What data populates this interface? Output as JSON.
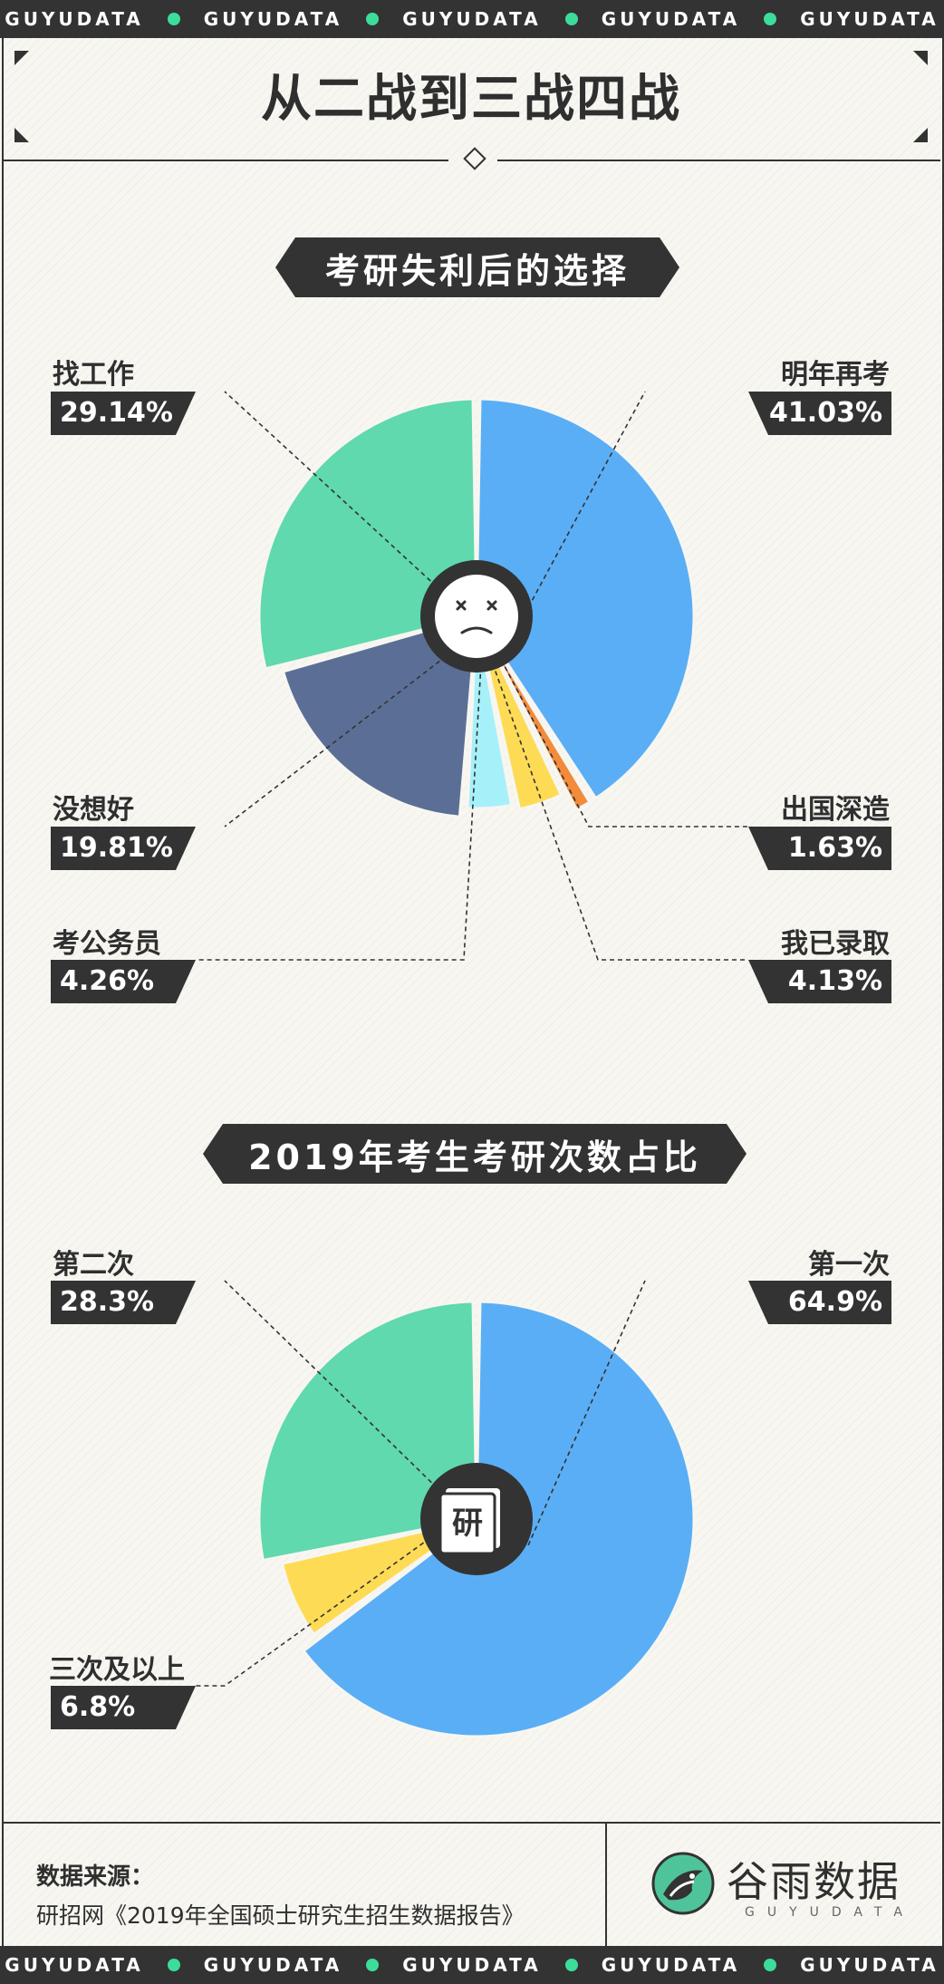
{
  "ribbon": {
    "word": "GUYUDATA"
  },
  "title": "从二战到三战四战",
  "section1": {
    "tag": "考研失利后的选择"
  },
  "section2": {
    "tag": "2019年考生考研次数占比"
  },
  "chart_data": [
    {
      "type": "pie",
      "title": "考研失利后的选择",
      "categories": [
        "明年再考",
        "出国深造",
        "我已录取",
        "考公务员",
        "没想好",
        "找工作"
      ],
      "values": [
        41.03,
        1.63,
        4.13,
        4.26,
        19.81,
        29.14
      ],
      "labels": [
        "41.03%",
        "1.63%",
        "4.13%",
        "4.26%",
        "19.81%",
        "29.14%"
      ],
      "colors": [
        "#5aaef5",
        "#f28b3c",
        "#fddb55",
        "#a6f0fa",
        "#5b6f96",
        "#5fd9ad"
      ]
    },
    {
      "type": "pie",
      "title": "2019年考生考研次数占比",
      "categories": [
        "第一次",
        "三次及以上",
        "第二次"
      ],
      "values": [
        64.9,
        6.8,
        28.3
      ],
      "labels": [
        "64.9%",
        "6.8%",
        "28.3%"
      ],
      "colors": [
        "#5aaef5",
        "#fddb55",
        "#5fd9ad"
      ]
    }
  ],
  "center_icon2": {
    "char": "研"
  },
  "footer": {
    "source_title": "数据来源：",
    "source_text": "研招网《2019年全国硕士研究生招生数据报告》",
    "brand_name": "谷雨数据",
    "brand_sub": "GUYUDATA"
  }
}
